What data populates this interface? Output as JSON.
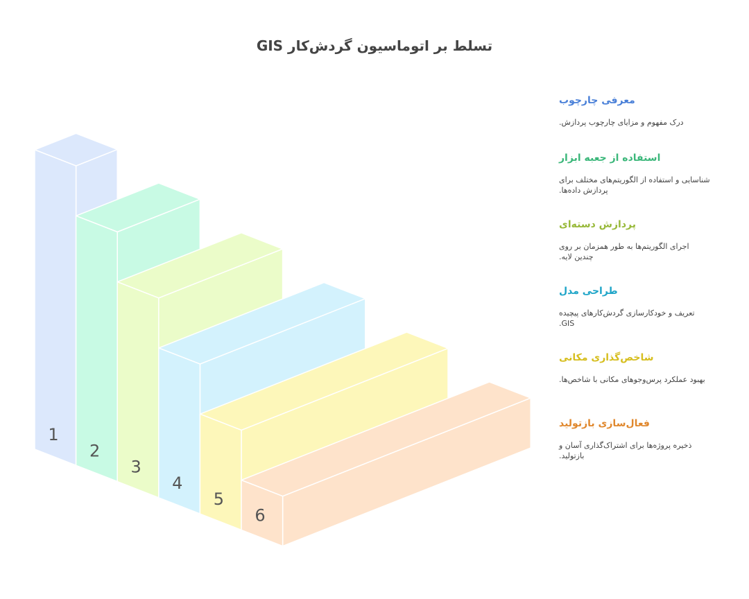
{
  "title": "تسلط بر اتوماسیون گردش‌کار GIS",
  "steps": [
    {
      "number": "1",
      "title": "معرفی چارچوب",
      "description": "درک مفهوم و مزایای چارچوب پردازش.",
      "color": "#4a80d8",
      "fill": "#dce8fc"
    },
    {
      "number": "2",
      "title": "استفاده از جعبه ابزار",
      "description": "شناسایی و استفاده از الگوریتم‌های مختلف برای پردازش داده‌ها.",
      "color": "#3bb77a",
      "fill": "#c8fae4"
    },
    {
      "number": "3",
      "title": "پردازش دسته‌ای",
      "description": "اجرای الگوریتم‌ها به طور همزمان بر روی چندین لایه.",
      "color": "#98b93a",
      "fill": "#ebfcc9"
    },
    {
      "number": "4",
      "title": "طراحی مدل",
      "description": "تعریف و خودکارسازی گردش‌کارهای پیچیده GIS.",
      "color": "#1fa5c8",
      "fill": "#d3f2fd"
    },
    {
      "number": "5",
      "title": "شاخص‌گذاری مکانی",
      "description": "بهبود عملکرد پرس‌وجوهای مکانی با شاخص‌ها.",
      "color": "#d6be1e",
      "fill": "#fdf7ba"
    },
    {
      "number": "6",
      "title": "فعال‌سازی بازتولید",
      "description": "ذخیره پروژه‌ها برای اشتراک‌گذاری آسان و بازتولید.",
      "color": "#e0882e",
      "fill": "#fee3cb"
    }
  ]
}
